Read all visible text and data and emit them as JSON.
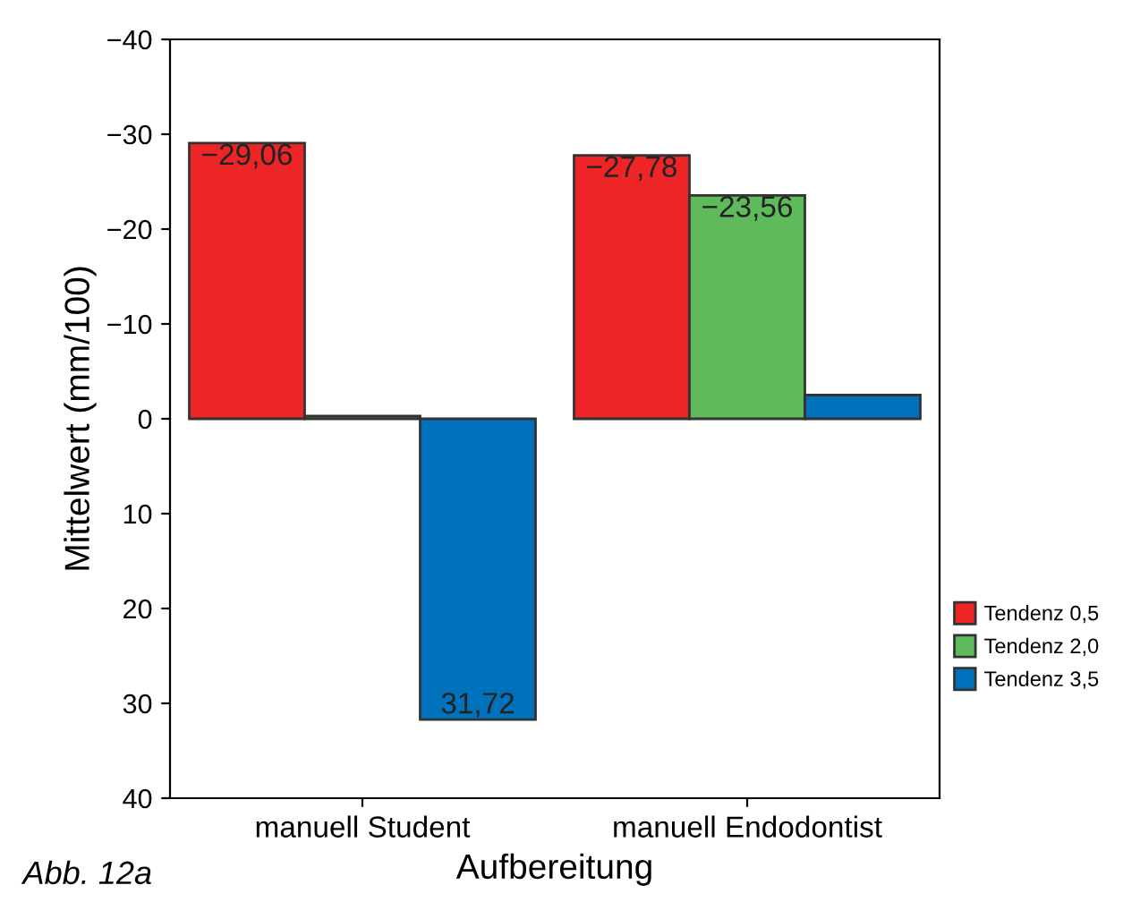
{
  "chart_data": {
    "type": "bar",
    "xlabel": "Aufbereitung",
    "ylabel": "Mittelwert (mm/100)",
    "categories": [
      "manuell Student",
      "manuell Endodontist"
    ],
    "series": [
      {
        "name": "Tendenz 0,5",
        "color": "#ee2527",
        "values": [
          -29.06,
          -27.78
        ],
        "value_labels": [
          "−29,06",
          "−27,78"
        ]
      },
      {
        "name": "Tendenz 2,0",
        "color": "#5fba5b",
        "values": [
          -0.3,
          -23.56
        ],
        "value_labels": [
          null,
          "−23,56"
        ]
      },
      {
        "name": "Tendenz 3,5",
        "color": "#0072bc",
        "values": [
          31.72,
          -2.5
        ],
        "value_labels": [
          "31,72",
          null
        ]
      }
    ],
    "ylim": [
      40,
      -40
    ],
    "yticks": [
      {
        "value": -40,
        "label": "−40"
      },
      {
        "value": -30,
        "label": "−30"
      },
      {
        "value": -20,
        "label": "−20"
      },
      {
        "value": -10,
        "label": "−10"
      },
      0,
      10,
      20,
      30,
      40
    ],
    "legend": "right",
    "grid": false,
    "annotations": [
      "Abb. 12a"
    ]
  }
}
